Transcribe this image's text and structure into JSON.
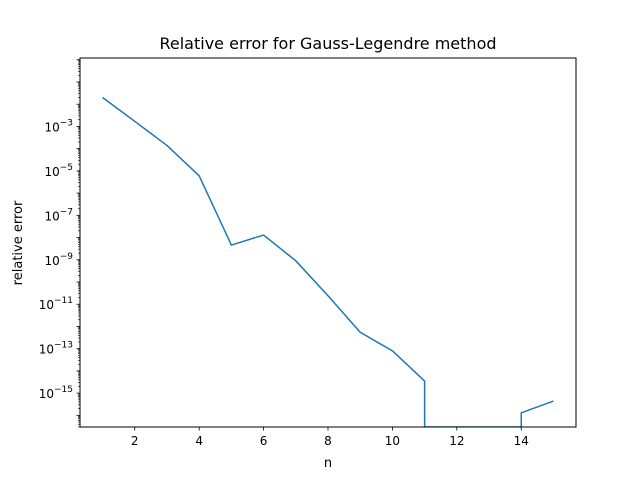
{
  "chart_data": {
    "type": "line",
    "title": "Relative error for Gauss-Legendre method",
    "xlabel": "n",
    "ylabel": "relative error",
    "x_scale": "linear",
    "y_scale": "log",
    "xlim": [
      0.3,
      15.7
    ],
    "ylim": [
      3e-17,
      1.2
    ],
    "grid": false,
    "xticks": [
      2,
      4,
      6,
      8,
      10,
      12,
      14
    ],
    "xtick_labels": [
      "2",
      "4",
      "6",
      "8",
      "10",
      "12",
      "14"
    ],
    "yticks": [
      1e-15,
      1e-13,
      1e-11,
      1e-09,
      1e-07,
      1e-05,
      0.001
    ],
    "ytick_labels": [
      {
        "base": "10",
        "exp": "−15"
      },
      {
        "base": "10",
        "exp": "−13"
      },
      {
        "base": "10",
        "exp": "−11"
      },
      {
        "base": "10",
        "exp": "−9"
      },
      {
        "base": "10",
        "exp": "−7"
      },
      {
        "base": "10",
        "exp": "−5"
      },
      {
        "base": "10",
        "exp": "−3"
      }
    ],
    "series": [
      {
        "color": "#1f77b4",
        "points": [
          {
            "x": 1,
            "y": 0.02
          },
          {
            "x": 2,
            "y": 0.0017
          },
          {
            "x": 3,
            "y": 0.00014
          },
          {
            "x": 4,
            "y": 6e-06
          },
          {
            "x": 5,
            "y": 4.6e-09
          },
          {
            "x": 6,
            "y": 1.3e-08
          },
          {
            "x": 7,
            "y": 9e-10
          },
          {
            "x": 8,
            "y": 2.4e-11
          },
          {
            "x": 9,
            "y": 5.5e-13
          },
          {
            "x": 10,
            "y": 8e-14
          },
          {
            "x": 11,
            "y": 3.5e-15
          },
          {
            "x": 11,
            "y": 0
          },
          {
            "x": 14,
            "y": 0
          },
          {
            "x": 14,
            "y": 1.3e-16
          },
          {
            "x": 15,
            "y": 4.4e-16
          }
        ]
      }
    ]
  }
}
